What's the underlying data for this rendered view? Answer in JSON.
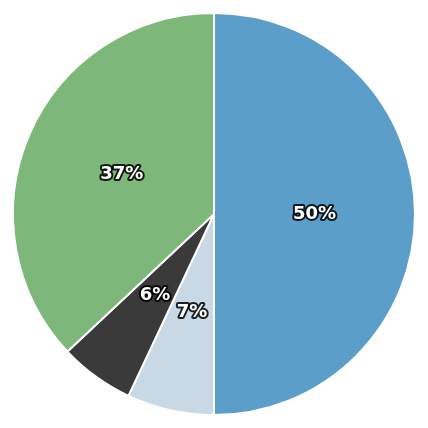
{
  "chart_data": {
    "type": "pie",
    "values": [
      50,
      7,
      6,
      37
    ],
    "value_labels": [
      "50%",
      "7%",
      "6%",
      "37%"
    ],
    "colors": [
      "#5b9ec9",
      "#c8d8e4",
      "#3a3a3a",
      "#7db87a"
    ],
    "data_labels": true
  }
}
